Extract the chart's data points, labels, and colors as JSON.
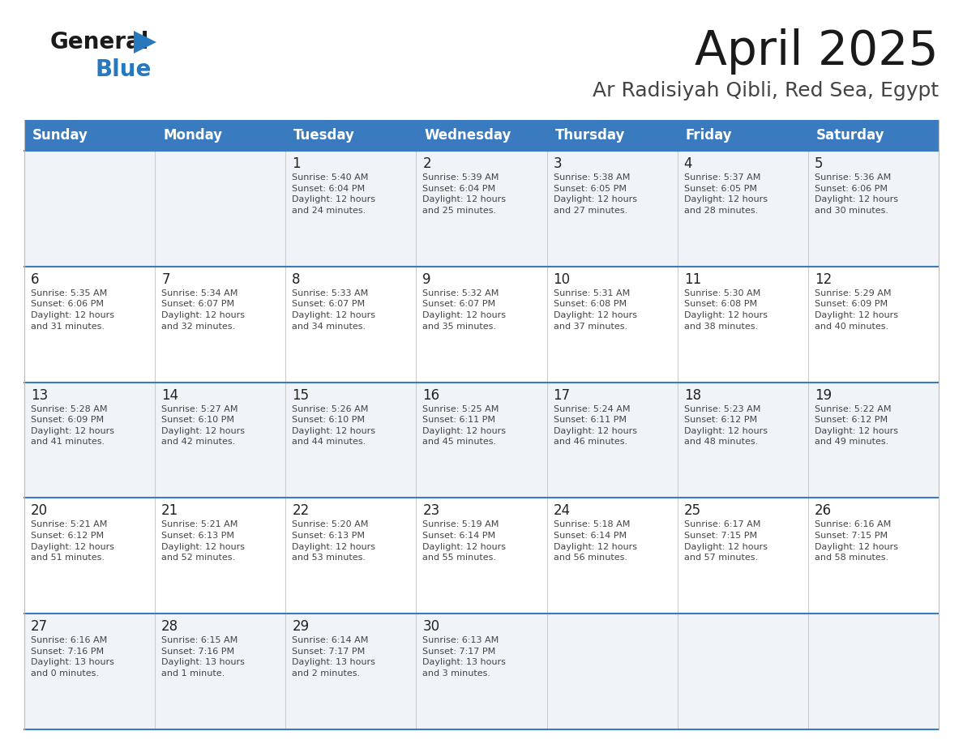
{
  "title": "April 2025",
  "subtitle": "Ar Radisiyah Qibli, Red Sea, Egypt",
  "days_of_week": [
    "Sunday",
    "Monday",
    "Tuesday",
    "Wednesday",
    "Thursday",
    "Friday",
    "Saturday"
  ],
  "header_bg": "#3a7bbf",
  "header_text": "#ffffff",
  "row_bg_light": "#f0f4f8",
  "row_bg_white": "#ffffff",
  "text_color": "#444444",
  "day_num_color": "#222222",
  "border_color": "#3a7bbf",
  "logo_text_color": "#1a1a1a",
  "logo_blue_color": "#2878be",
  "title_color": "#1a1a1a",
  "subtitle_color": "#444444",
  "calendar": [
    [
      {
        "day": "",
        "sunrise": "",
        "sunset": "",
        "daylight": ""
      },
      {
        "day": "",
        "sunrise": "",
        "sunset": "",
        "daylight": ""
      },
      {
        "day": "1",
        "sunrise": "Sunrise: 5:40 AM",
        "sunset": "Sunset: 6:04 PM",
        "daylight": "Daylight: 12 hours\nand 24 minutes."
      },
      {
        "day": "2",
        "sunrise": "Sunrise: 5:39 AM",
        "sunset": "Sunset: 6:04 PM",
        "daylight": "Daylight: 12 hours\nand 25 minutes."
      },
      {
        "day": "3",
        "sunrise": "Sunrise: 5:38 AM",
        "sunset": "Sunset: 6:05 PM",
        "daylight": "Daylight: 12 hours\nand 27 minutes."
      },
      {
        "day": "4",
        "sunrise": "Sunrise: 5:37 AM",
        "sunset": "Sunset: 6:05 PM",
        "daylight": "Daylight: 12 hours\nand 28 minutes."
      },
      {
        "day": "5",
        "sunrise": "Sunrise: 5:36 AM",
        "sunset": "Sunset: 6:06 PM",
        "daylight": "Daylight: 12 hours\nand 30 minutes."
      }
    ],
    [
      {
        "day": "6",
        "sunrise": "Sunrise: 5:35 AM",
        "sunset": "Sunset: 6:06 PM",
        "daylight": "Daylight: 12 hours\nand 31 minutes."
      },
      {
        "day": "7",
        "sunrise": "Sunrise: 5:34 AM",
        "sunset": "Sunset: 6:07 PM",
        "daylight": "Daylight: 12 hours\nand 32 minutes."
      },
      {
        "day": "8",
        "sunrise": "Sunrise: 5:33 AM",
        "sunset": "Sunset: 6:07 PM",
        "daylight": "Daylight: 12 hours\nand 34 minutes."
      },
      {
        "day": "9",
        "sunrise": "Sunrise: 5:32 AM",
        "sunset": "Sunset: 6:07 PM",
        "daylight": "Daylight: 12 hours\nand 35 minutes."
      },
      {
        "day": "10",
        "sunrise": "Sunrise: 5:31 AM",
        "sunset": "Sunset: 6:08 PM",
        "daylight": "Daylight: 12 hours\nand 37 minutes."
      },
      {
        "day": "11",
        "sunrise": "Sunrise: 5:30 AM",
        "sunset": "Sunset: 6:08 PM",
        "daylight": "Daylight: 12 hours\nand 38 minutes."
      },
      {
        "day": "12",
        "sunrise": "Sunrise: 5:29 AM",
        "sunset": "Sunset: 6:09 PM",
        "daylight": "Daylight: 12 hours\nand 40 minutes."
      }
    ],
    [
      {
        "day": "13",
        "sunrise": "Sunrise: 5:28 AM",
        "sunset": "Sunset: 6:09 PM",
        "daylight": "Daylight: 12 hours\nand 41 minutes."
      },
      {
        "day": "14",
        "sunrise": "Sunrise: 5:27 AM",
        "sunset": "Sunset: 6:10 PM",
        "daylight": "Daylight: 12 hours\nand 42 minutes."
      },
      {
        "day": "15",
        "sunrise": "Sunrise: 5:26 AM",
        "sunset": "Sunset: 6:10 PM",
        "daylight": "Daylight: 12 hours\nand 44 minutes."
      },
      {
        "day": "16",
        "sunrise": "Sunrise: 5:25 AM",
        "sunset": "Sunset: 6:11 PM",
        "daylight": "Daylight: 12 hours\nand 45 minutes."
      },
      {
        "day": "17",
        "sunrise": "Sunrise: 5:24 AM",
        "sunset": "Sunset: 6:11 PM",
        "daylight": "Daylight: 12 hours\nand 46 minutes."
      },
      {
        "day": "18",
        "sunrise": "Sunrise: 5:23 AM",
        "sunset": "Sunset: 6:12 PM",
        "daylight": "Daylight: 12 hours\nand 48 minutes."
      },
      {
        "day": "19",
        "sunrise": "Sunrise: 5:22 AM",
        "sunset": "Sunset: 6:12 PM",
        "daylight": "Daylight: 12 hours\nand 49 minutes."
      }
    ],
    [
      {
        "day": "20",
        "sunrise": "Sunrise: 5:21 AM",
        "sunset": "Sunset: 6:12 PM",
        "daylight": "Daylight: 12 hours\nand 51 minutes."
      },
      {
        "day": "21",
        "sunrise": "Sunrise: 5:21 AM",
        "sunset": "Sunset: 6:13 PM",
        "daylight": "Daylight: 12 hours\nand 52 minutes."
      },
      {
        "day": "22",
        "sunrise": "Sunrise: 5:20 AM",
        "sunset": "Sunset: 6:13 PM",
        "daylight": "Daylight: 12 hours\nand 53 minutes."
      },
      {
        "day": "23",
        "sunrise": "Sunrise: 5:19 AM",
        "sunset": "Sunset: 6:14 PM",
        "daylight": "Daylight: 12 hours\nand 55 minutes."
      },
      {
        "day": "24",
        "sunrise": "Sunrise: 5:18 AM",
        "sunset": "Sunset: 6:14 PM",
        "daylight": "Daylight: 12 hours\nand 56 minutes."
      },
      {
        "day": "25",
        "sunrise": "Sunrise: 6:17 AM",
        "sunset": "Sunset: 7:15 PM",
        "daylight": "Daylight: 12 hours\nand 57 minutes."
      },
      {
        "day": "26",
        "sunrise": "Sunrise: 6:16 AM",
        "sunset": "Sunset: 7:15 PM",
        "daylight": "Daylight: 12 hours\nand 58 minutes."
      }
    ],
    [
      {
        "day": "27",
        "sunrise": "Sunrise: 6:16 AM",
        "sunset": "Sunset: 7:16 PM",
        "daylight": "Daylight: 13 hours\nand 0 minutes."
      },
      {
        "day": "28",
        "sunrise": "Sunrise: 6:15 AM",
        "sunset": "Sunset: 7:16 PM",
        "daylight": "Daylight: 13 hours\nand 1 minute."
      },
      {
        "day": "29",
        "sunrise": "Sunrise: 6:14 AM",
        "sunset": "Sunset: 7:17 PM",
        "daylight": "Daylight: 13 hours\nand 2 minutes."
      },
      {
        "day": "30",
        "sunrise": "Sunrise: 6:13 AM",
        "sunset": "Sunset: 7:17 PM",
        "daylight": "Daylight: 13 hours\nand 3 minutes."
      },
      {
        "day": "",
        "sunrise": "",
        "sunset": "",
        "daylight": ""
      },
      {
        "day": "",
        "sunrise": "",
        "sunset": "",
        "daylight": ""
      },
      {
        "day": "",
        "sunrise": "",
        "sunset": "",
        "daylight": ""
      }
    ]
  ]
}
